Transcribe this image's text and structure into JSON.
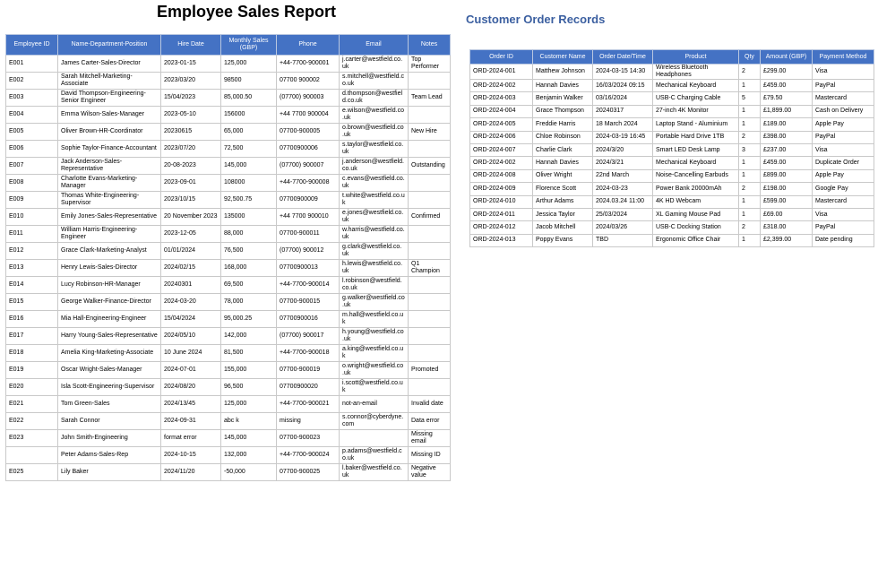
{
  "employee_report": {
    "title": "Employee Sales Report",
    "columns": [
      "Employee ID",
      "Name-Department-Position",
      "Hire Date",
      "Monthly Sales (GBP)",
      "Phone",
      "Email",
      "Notes"
    ],
    "rows": [
      [
        "E001",
        "James Carter-Sales-Director",
        "2023-01-15",
        "125,000",
        "+44-7700-900001",
        "j.carter@westfield.co.uk",
        "Top Performer"
      ],
      [
        "E002",
        "Sarah Mitchell-Marketing-Associate",
        "2023/03/20",
        "98500",
        "07700 900002",
        "s.mitchell@westfield.co.uk",
        ""
      ],
      [
        "E003",
        "David Thompson-Engineering-Senior Engineer",
        "15/04/2023",
        "85,000.50",
        "(07700) 900003",
        "d.thompson@westfield.co.uk",
        "Team Lead"
      ],
      [
        "E004",
        "Emma Wilson-Sales-Manager",
        "2023-05-10",
        "156000",
        "+44 7700 900004",
        "e.wilson@westfield.co.uk",
        ""
      ],
      [
        "E005",
        "Oliver Brown-HR-Coordinator",
        "20230615",
        "65,000",
        "07700-900005",
        "o.brown@westfield.co.uk",
        "New Hire"
      ],
      [
        "E006",
        "Sophie Taylor-Finance-Accountant",
        "2023/07/20",
        "72,500",
        "07700900006",
        "s.taylor@westfield.co.uk",
        ""
      ],
      [
        "E007",
        "Jack Anderson-Sales-Representative",
        "20-08-2023",
        "145,000",
        "(07700) 900007",
        "j.anderson@westfield.co.uk",
        "Outstanding"
      ],
      [
        "E008",
        "Charlotte Evans-Marketing-Manager",
        "2023-09-01",
        "108000",
        "+44-7700-900008",
        "c.evans@westfield.co.uk",
        ""
      ],
      [
        "E009",
        "Thomas White-Engineering-Supervisor",
        "2023/10/15",
        "92,500.75",
        "07700900009",
        "t.white@westfield.co.uk",
        ""
      ],
      [
        "E010",
        "Emily Jones-Sales-Representative",
        "20 November 2023",
        "135000",
        "+44 7700 900010",
        "e.jones@westfield.co.uk",
        "Confirmed"
      ],
      [
        "E011",
        "William Harris-Engineering-Engineer",
        "2023-12-05",
        "88,000",
        "07700-900011",
        "w.harris@westfield.co.uk",
        ""
      ],
      [
        "E012",
        "Grace Clark-Marketing-Analyst",
        "01/01/2024",
        "76,500",
        "(07700) 900012",
        "g.clark@westfield.co.uk",
        ""
      ],
      [
        "E013",
        "Henry Lewis-Sales-Director",
        "2024/02/15",
        "168,000",
        "07700900013",
        "h.lewis@westfield.co.uk",
        "Q1 Champion"
      ],
      [
        "E014",
        "Lucy Robinson-HR-Manager",
        "20240301",
        "69,500",
        "+44-7700-900014",
        "l.robinson@westfield.co.uk",
        ""
      ],
      [
        "E015",
        "George Walker-Finance-Director",
        "2024-03-20",
        "78,000",
        "07700-900015",
        "g.walker@westfield.co.uk",
        ""
      ],
      [
        "E016",
        "Mia Hall-Engineering-Engineer",
        "15/04/2024",
        "95,000.25",
        "07700900016",
        "m.hall@westfield.co.uk",
        ""
      ],
      [
        "E017",
        "Harry Young-Sales-Representative",
        "2024/05/10",
        "142,000",
        "(07700) 900017",
        "h.young@westfield.co.uk",
        ""
      ],
      [
        "E018",
        "Amelia King-Marketing-Associate",
        "10 June 2024",
        "81,500",
        "+44-7700-900018",
        "a.king@westfield.co.uk",
        ""
      ],
      [
        "E019",
        "Oscar Wright-Sales-Manager",
        "2024-07-01",
        "155,000",
        "07700-900019",
        "o.wright@westfield.co.uk",
        "Promoted"
      ],
      [
        "E020",
        "Isla Scott-Engineering-Supervisor",
        "2024/08/20",
        "96,500",
        "07700900020",
        "i.scott@westfield.co.uk",
        ""
      ],
      [
        "E021",
        "Tom Green-Sales",
        "2024/13/45",
        "125,000",
        "+44-7700-900021",
        "not-an-email",
        "Invalid date"
      ],
      [
        "E022",
        "Sarah Connor",
        "2024-09-31",
        "abc k",
        "missing",
        "s.connor@cyberdyne.com",
        "Data error"
      ],
      [
        "E023",
        "John Smith-Engineering",
        "format error",
        "145,000",
        "07700-900023",
        "",
        "Missing email"
      ],
      [
        "",
        "Peter Adams-Sales-Rep",
        "2024-10-15",
        "132,000",
        "+44-7700-900024",
        "p.adams@westfield.co.uk",
        "Missing ID"
      ],
      [
        "E025",
        "Lily Baker",
        "2024/11/20",
        "-50,000",
        "07700-900025",
        "l.baker@westfield.co.uk",
        "Negative value"
      ]
    ]
  },
  "customer_orders": {
    "title": "Customer Order Records",
    "columns": [
      "Order ID",
      "Customer Name",
      "Order Date/Time",
      "Product",
      "Qty",
      "Amount (GBP)",
      "Payment Method"
    ],
    "rows": [
      [
        "ORD-2024-001",
        "Matthew Johnson",
        "2024-03-15 14:30",
        "Wireless Bluetooth Headphones",
        "2",
        "£299.00",
        "Visa"
      ],
      [
        "ORD-2024-002",
        "Hannah Davies",
        "16/03/2024 09:15",
        "Mechanical Keyboard",
        "1",
        "£459.00",
        "PayPal"
      ],
      [
        "ORD-2024-003",
        "Benjamin Walker",
        "03/16/2024",
        "USB-C Charging Cable",
        "5",
        "£79.50",
        "Mastercard"
      ],
      [
        "ORD-2024-004",
        "Grace Thompson",
        "20240317",
        "27-inch 4K Monitor",
        "1",
        "£1,899.00",
        "Cash on Delivery"
      ],
      [
        "ORD-2024-005",
        "Freddie Harris",
        "18 March 2024",
        "Laptop Stand - Aluminium",
        "1",
        "£189.00",
        "Apple Pay"
      ],
      [
        "ORD-2024-006",
        "Chloe Robinson",
        "2024-03-19 16:45",
        "Portable Hard Drive 1TB",
        "2",
        "£398.00",
        "PayPal"
      ],
      [
        "ORD-2024-007",
        "Charlie Clark",
        "2024/3/20",
        "Smart LED Desk Lamp",
        "3",
        "£237.00",
        "Visa"
      ],
      [
        "ORD-2024-002",
        "Hannah Davies",
        "2024/3/21",
        "Mechanical Keyboard",
        "1",
        "£459.00",
        "Duplicate Order"
      ],
      [
        "ORD-2024-008",
        "Oliver Wright",
        "22nd March",
        "Noise-Cancelling Earbuds",
        "1",
        "£899.00",
        "Apple Pay"
      ],
      [
        "ORD-2024-009",
        "Florence Scott",
        "2024-03-23",
        "Power Bank 20000mAh",
        "2",
        "£198.00",
        "Google Pay"
      ],
      [
        "ORD-2024-010",
        "Arthur Adams",
        "2024.03.24 11:00",
        "4K HD Webcam",
        "1",
        "£599.00",
        "Mastercard"
      ],
      [
        "ORD-2024-011",
        "Jessica Taylor",
        "25/03/2024",
        "XL Gaming Mouse Pad",
        "1",
        "£69.00",
        "Visa"
      ],
      [
        "ORD-2024-012",
        "Jacob Mitchell",
        "2024/03/26",
        "USB-C Docking Station",
        "2",
        "£318.00",
        "PayPal"
      ],
      [
        "ORD-2024-013",
        "Poppy Evans",
        "TBD",
        "Ergonomic Office Chair",
        "1",
        "£2,399.00",
        "Date pending"
      ]
    ]
  }
}
